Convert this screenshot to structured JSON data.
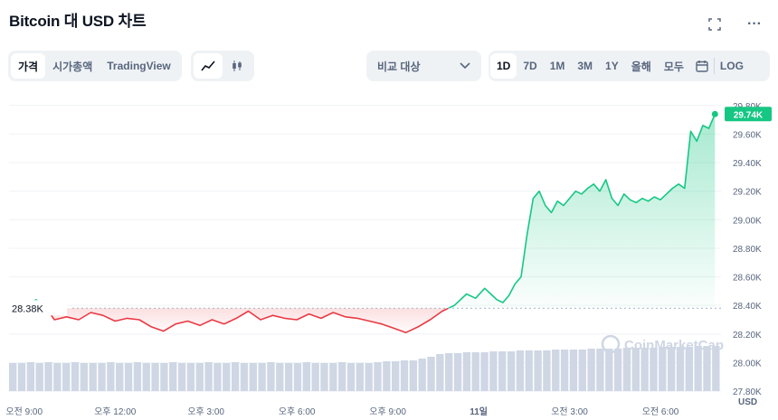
{
  "header": {
    "title": "Bitcoin 대 USD 차트",
    "fullscreen_icon": "fullscreen-icon",
    "more_icon": "more-icon",
    "more_label": "···"
  },
  "toolbar": {
    "view_tabs": [
      "가격",
      "시가총액",
      "TradingView"
    ],
    "active_view": "가격",
    "chart_type_icons": [
      "line-chart-icon",
      "candlestick-icon"
    ],
    "compare_label": "비교 대상",
    "ranges": [
      "1D",
      "7D",
      "1M",
      "3M",
      "1Y",
      "올해",
      "모두"
    ],
    "active_range": "1D",
    "calendar_icon": "calendar-icon",
    "log_label": "LOG"
  },
  "colors": {
    "up": "#16c784",
    "down": "#ea3943",
    "up_fill": "#16c784",
    "down_fill": "#ea3943",
    "volume": "#cfd6e4",
    "grid": "#eff2f5"
  },
  "chart_data": {
    "type": "area",
    "watermark": "CoinMarketCap",
    "baseline_label": "28.38K",
    "baseline": 28.38,
    "last_label": "29.74K",
    "ylim": [
      27.8,
      29.9
    ],
    "y_ticks": [
      27.8,
      28.0,
      28.2,
      28.4,
      28.6,
      28.8,
      29.0,
      29.2,
      29.4,
      29.6,
      29.8
    ],
    "y_tick_labels": [
      "27.80K",
      "28.00K",
      "28.20K",
      "28.40K",
      "28.60K",
      "28.80K",
      "29.00K",
      "29.20K",
      "29.40K",
      "29.60K",
      "29.80K"
    ],
    "y_unit": "USD",
    "x_ticks": [
      0,
      3,
      6,
      9,
      12,
      15,
      18,
      21
    ],
    "x_tick_labels": [
      "오전 9:00",
      "오후 12:00",
      "오후 3:00",
      "오후 6:00",
      "오후 9:00",
      "11일",
      "오전 3:00",
      "오전 6:00"
    ],
    "xlim": [
      -0.5,
      23
    ],
    "series": [
      {
        "x": [
          0,
          0.2,
          0.4,
          0.55,
          0.8,
          1.0,
          1.4,
          1.8,
          2.2,
          2.6,
          3.0,
          3.4,
          3.8,
          4.2,
          4.6,
          5.0,
          5.4,
          5.8,
          6.2,
          6.6,
          7.0,
          7.4,
          7.8,
          8.2,
          8.6,
          9.0,
          9.4,
          9.8,
          10.2,
          10.6,
          11.0,
          11.4,
          11.8,
          12.2,
          12.6,
          13.0,
          13.4,
          13.8,
          14.2,
          14.6,
          14.9,
          15.2,
          15.4,
          15.6,
          15.8,
          16.0,
          16.2,
          16.4,
          16.6,
          16.8,
          17.0,
          17.2,
          17.4,
          17.6,
          17.8,
          18.0,
          18.2,
          18.4,
          18.6,
          18.8,
          19.0,
          19.2,
          19.4,
          19.6,
          19.8,
          20.0,
          20.2,
          20.4,
          20.6,
          20.8,
          21.0,
          21.2,
          21.4,
          21.6,
          21.8,
          22.0,
          22.2,
          22.4,
          22.6,
          22.8
        ],
        "y": [
          28.38,
          28.42,
          28.44,
          28.4,
          28.36,
          28.3,
          28.32,
          28.3,
          28.35,
          28.33,
          28.29,
          28.31,
          28.3,
          28.25,
          28.22,
          28.27,
          28.29,
          28.26,
          28.3,
          28.27,
          28.31,
          28.36,
          28.3,
          28.33,
          28.31,
          28.3,
          28.34,
          28.31,
          28.35,
          28.32,
          28.31,
          28.29,
          28.27,
          28.24,
          28.21,
          28.25,
          28.3,
          28.36,
          28.4,
          28.48,
          28.45,
          28.52,
          28.48,
          28.44,
          28.42,
          28.47,
          28.55,
          28.6,
          28.9,
          29.15,
          29.2,
          29.1,
          29.05,
          29.13,
          29.1,
          29.15,
          29.2,
          29.18,
          29.22,
          29.25,
          29.2,
          29.28,
          29.15,
          29.1,
          29.18,
          29.14,
          29.12,
          29.15,
          29.13,
          29.16,
          29.14,
          29.18,
          29.22,
          29.25,
          29.22,
          29.62,
          29.55,
          29.66,
          29.64,
          29.74
        ]
      }
    ],
    "volume": [
      31,
      31,
      32,
      31,
      32,
      31,
      31,
      32,
      31,
      31,
      31,
      32,
      31,
      31,
      32,
      31,
      31,
      31,
      32,
      31,
      31,
      31,
      32,
      31,
      31,
      32,
      31,
      31,
      31,
      32,
      31,
      31,
      31,
      32,
      31,
      31,
      31,
      32,
      31,
      31,
      31,
      32,
      33,
      33,
      34,
      34,
      36,
      38,
      41,
      42,
      42,
      43,
      43,
      43,
      44,
      44,
      44,
      45,
      45,
      45,
      45,
      46,
      46,
      46,
      46,
      47,
      47,
      47,
      47,
      48,
      48,
      48,
      48,
      49,
      49,
      49,
      49,
      50,
      50,
      50
    ]
  }
}
